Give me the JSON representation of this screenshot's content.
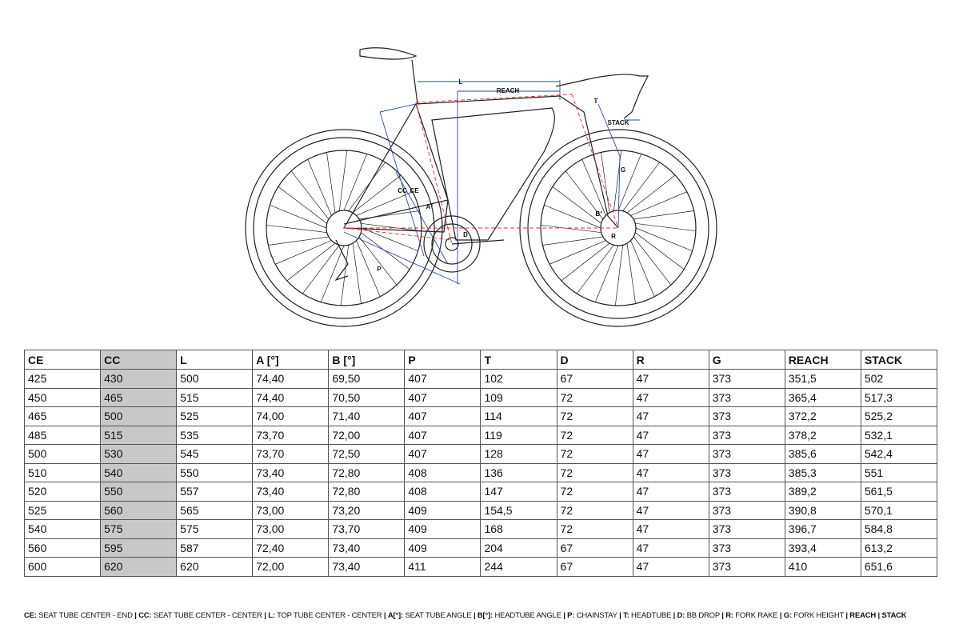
{
  "diagram": {
    "labels": [
      "L",
      "REACH",
      "T",
      "STACK",
      "G",
      "CC",
      "CE",
      "A°",
      "D",
      "B°",
      "R",
      "P"
    ]
  },
  "table": {
    "headers": [
      "CE",
      "CC",
      "L",
      "A [°]",
      "B [°]",
      "P",
      "T",
      "D",
      "R",
      "G",
      "REACH",
      "STACK"
    ],
    "rows": [
      [
        "425",
        "430",
        "500",
        "74,40",
        "69,50",
        "407",
        "102",
        "67",
        "47",
        "373",
        "351,5",
        "502"
      ],
      [
        "450",
        "465",
        "515",
        "74,40",
        "70,50",
        "407",
        "109",
        "72",
        "47",
        "373",
        "365,4",
        "517,3"
      ],
      [
        "465",
        "500",
        "525",
        "74,00",
        "71,40",
        "407",
        "114",
        "72",
        "47",
        "373",
        "372,2",
        "525,2"
      ],
      [
        "485",
        "515",
        "535",
        "73,70",
        "72,00",
        "407",
        "119",
        "72",
        "47",
        "373",
        "378,2",
        "532,1"
      ],
      [
        "500",
        "530",
        "545",
        "73,70",
        "72,50",
        "407",
        "128",
        "72",
        "47",
        "373",
        "385,6",
        "542,4"
      ],
      [
        "510",
        "540",
        "550",
        "73,40",
        "72,80",
        "408",
        "136",
        "72",
        "47",
        "373",
        "385,3",
        "551"
      ],
      [
        "520",
        "550",
        "557",
        "73,40",
        "72,80",
        "408",
        "147",
        "72",
        "47",
        "373",
        "389,2",
        "561,5"
      ],
      [
        "525",
        "560",
        "565",
        "73,00",
        "73,20",
        "409",
        "154,5",
        "72",
        "47",
        "373",
        "390,8",
        "570,1"
      ],
      [
        "540",
        "575",
        "575",
        "73,00",
        "73,70",
        "409",
        "168",
        "72",
        "47",
        "373",
        "396,7",
        "584,8"
      ],
      [
        "560",
        "595",
        "587",
        "72,40",
        "73,40",
        "409",
        "204",
        "67",
        "47",
        "373",
        "393,4",
        "613,2"
      ],
      [
        "600",
        "620",
        "620",
        "72,00",
        "73,40",
        "411",
        "244",
        "67",
        "47",
        "373",
        "410",
        "651,6"
      ]
    ]
  },
  "legend": {
    "separator": "|",
    "items": [
      {
        "key": "CE:",
        "desc": "SEAT TUBE CENTER - END"
      },
      {
        "key": "CC:",
        "desc": "SEAT TUBE CENTER - CENTER"
      },
      {
        "key": "L:",
        "desc": "TOP TUBE CENTER - CENTER"
      },
      {
        "key": "A[°]:",
        "desc": "SEAT TUBE ANGLE"
      },
      {
        "key": "B[°]:",
        "desc": "HEADTUBE ANGLE"
      },
      {
        "key": "P:",
        "desc": "CHAINSTAY"
      },
      {
        "key": "T:",
        "desc": "HEADTUBE"
      },
      {
        "key": "D:",
        "desc": "BB DROP"
      },
      {
        "key": "R:",
        "desc": "FORK RAKE"
      },
      {
        "key": "G:",
        "desc": "FORK HEIGHT"
      },
      {
        "key": "REACH"
      },
      {
        "key": "STACK"
      }
    ]
  }
}
